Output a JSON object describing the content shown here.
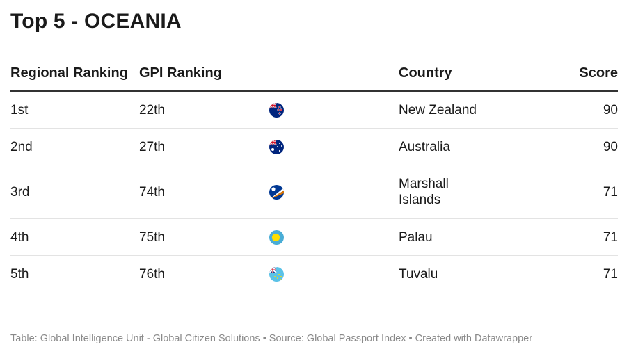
{
  "title": "Top 5 - OCEANIA",
  "columns": {
    "regional_ranking": "Regional Ranking",
    "gpi_ranking": "GPI Ranking",
    "country": "Country",
    "score": "Score"
  },
  "rows": [
    {
      "regional": "1st",
      "gpi": "22th",
      "flag_icon": "new-zealand-flag-icon",
      "country": "New Zealand",
      "score": "90"
    },
    {
      "regional": "2nd",
      "gpi": "27th",
      "flag_icon": "australia-flag-icon",
      "country": "Australia",
      "score": "90"
    },
    {
      "regional": "3rd",
      "gpi": "74th",
      "flag_icon": "marshall-islands-flag-icon",
      "country": "Marshall Islands",
      "score": "71"
    },
    {
      "regional": "4th",
      "gpi": "75th",
      "flag_icon": "palau-flag-icon",
      "country": "Palau",
      "score": "71"
    },
    {
      "regional": "5th",
      "gpi": "76th",
      "flag_icon": "tuvalu-flag-icon",
      "country": "Tuvalu",
      "score": "71"
    }
  ],
  "footer": "Table: Global Intelligence Unit - Global Citizen Solutions • Source: Global Passport Index • Created with Datawrapper",
  "colors": {
    "header_rule": "#333333",
    "row_divider": "#e3e3e3",
    "footer_text": "#8a8a8a"
  }
}
